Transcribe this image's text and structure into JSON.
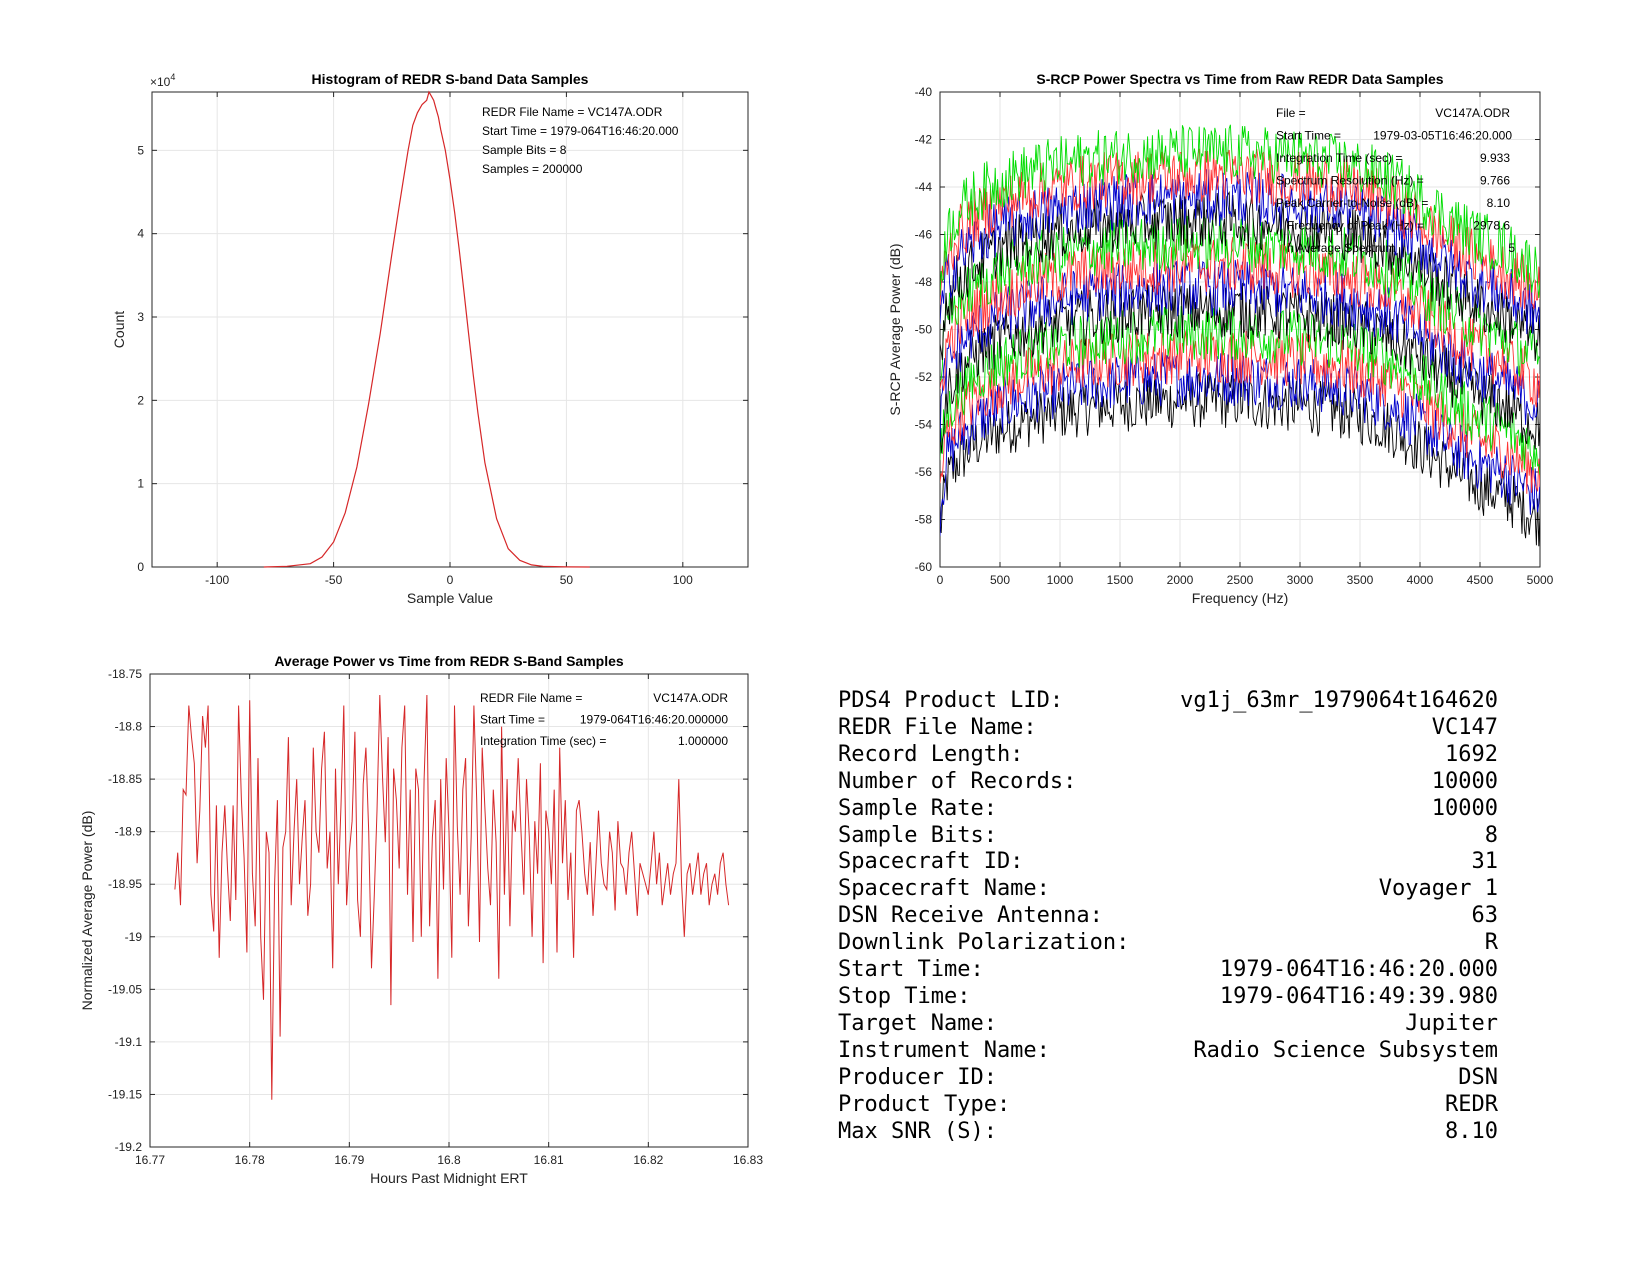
{
  "chart_data": [
    {
      "type": "line",
      "title": "Histogram of REDR S-band Data Samples",
      "xlabel": "Sample Value",
      "ylabel": "Count",
      "xlim": [
        -128,
        128
      ],
      "ylim": [
        0,
        57000
      ],
      "y_exponent_label": "×10",
      "y_exponent_power": "4",
      "xticks": [
        -100,
        -50,
        0,
        50,
        100
      ],
      "yticks": [
        0,
        10000,
        20000,
        30000,
        40000,
        50000
      ],
      "ytick_labels": [
        "0",
        "1",
        "2",
        "3",
        "4",
        "5"
      ],
      "grid": true,
      "color": "#d62728",
      "series": [
        {
          "x": [
            -80,
            -70,
            -60,
            -55,
            -50,
            -45,
            -40,
            -35,
            -30,
            -25,
            -22,
            -20,
            -18,
            -16,
            -14,
            -12,
            -10,
            -9,
            -8,
            -7,
            -6,
            -5,
            -4,
            -2,
            0,
            2,
            4,
            6,
            8,
            10,
            12,
            15,
            20,
            25,
            30,
            35,
            40,
            50,
            60
          ],
          "values": [
            0,
            80,
            400,
            1200,
            3000,
            6500,
            12000,
            19500,
            28000,
            37500,
            43000,
            46500,
            50000,
            53000,
            54500,
            55500,
            56000,
            57000,
            56500,
            56000,
            55000,
            54000,
            52500,
            50000,
            46500,
            42500,
            38000,
            33000,
            28000,
            23000,
            18500,
            12500,
            5800,
            2200,
            800,
            250,
            80,
            10,
            0
          ]
        }
      ],
      "annotations": [
        "REDR File Name = VC147A.ODR",
        "Start Time = 1979-064T16:46:20.000",
        "Sample Bits = 8",
        "Samples = 200000"
      ]
    },
    {
      "type": "line",
      "title": "S-RCP Power Spectra vs Time from Raw REDR Data Samples",
      "xlabel": "Frequency (Hz)",
      "ylabel": "S-RCP Average Power (dB)",
      "xlim": [
        0,
        5000
      ],
      "ylim": [
        -60,
        -40
      ],
      "xticks": [
        0,
        500,
        1000,
        1500,
        2000,
        2500,
        3000,
        3500,
        4000,
        4500,
        5000
      ],
      "yticks": [
        -60,
        -58,
        -56,
        -54,
        -52,
        -50,
        -48,
        -46,
        -44,
        -42,
        -40
      ],
      "grid": true,
      "trace_colors": [
        "#000000",
        "#0000cc",
        "#ff3333",
        "#00dd00"
      ],
      "trace_offsets_db": [
        0,
        1,
        2,
        3,
        4,
        5,
        6,
        7,
        8,
        9,
        10,
        11
      ],
      "base_shape": {
        "x": [
          0,
          50,
          150,
          300,
          500,
          800,
          1200,
          1600,
          2000,
          2500,
          3000,
          3400,
          3700,
          3900,
          4100,
          4300,
          4500,
          4700,
          4850,
          5000
        ],
        "values": [
          -58.5,
          -56.5,
          -55.5,
          -54.8,
          -54.2,
          -53.7,
          -53.3,
          -53.1,
          -53.0,
          -53.0,
          -53.2,
          -53.5,
          -54.0,
          -54.6,
          -55.3,
          -56.0,
          -56.6,
          -57.0,
          -57.5,
          -58.0
        ]
      },
      "noise_db": 1.2,
      "annotations": [
        {
          "label": "File =",
          "value": "VC147A.ODR"
        },
        {
          "label": "Start Time =",
          "value": "1979-03-05T16:46:20.000"
        },
        {
          "label": "Integration Time (sec) =",
          "value": "9.933"
        },
        {
          "label": "Spectrum Resolution (Hz) =",
          "value": "9.766"
        },
        {
          "label": "Peak Carrier-to-Noise (dB) =",
          "value": "8.10"
        },
        {
          "label": "Frequency of Peak (Hz) =",
          "value": "2978.6"
        },
        {
          "label": "n Average Spectrum",
          "value": "5"
        }
      ]
    },
    {
      "type": "line",
      "title": "Average Power vs Time from REDR S-Band Samples",
      "xlabel": "Hours Past Midnight ERT",
      "ylabel": "Normalized Average Power (dB)",
      "xlim": [
        16.77,
        16.83
      ],
      "ylim": [
        -19.2,
        -18.75
      ],
      "xticks": [
        16.77,
        16.78,
        16.79,
        16.8,
        16.81,
        16.82,
        16.83
      ],
      "xtick_labels": [
        "16.77",
        "16.78",
        "16.79",
        "16.8",
        "16.81",
        "16.82",
        "16.83"
      ],
      "yticks": [
        -19.2,
        -19.15,
        -19.1,
        -19.05,
        -19.0,
        -18.95,
        -18.9,
        -18.85,
        -18.8,
        -18.75
      ],
      "ytick_labels": [
        "-19.2",
        "-19.15",
        "-19.1",
        "-19.05",
        "-19",
        "-18.95",
        "-18.9",
        "-18.85",
        "-18.8",
        "-18.75"
      ],
      "grid": true,
      "color": "#d62728",
      "series": [
        {
          "x_start": 16.7725,
          "x_step": 0.00027778,
          "values": [
            -18.955,
            -18.92,
            -18.97,
            -18.86,
            -18.865,
            -18.78,
            -18.81,
            -18.835,
            -18.93,
            -18.88,
            -18.79,
            -18.82,
            -18.78,
            -18.96,
            -18.995,
            -18.875,
            -19.02,
            -18.92,
            -18.875,
            -18.935,
            -18.985,
            -18.875,
            -18.965,
            -18.78,
            -18.87,
            -18.925,
            -19.015,
            -18.775,
            -18.94,
            -18.99,
            -18.83,
            -19.0,
            -19.06,
            -18.9,
            -18.92,
            -19.155,
            -18.95,
            -18.87,
            -19.095,
            -18.915,
            -18.9,
            -18.81,
            -18.97,
            -18.9,
            -18.85,
            -18.95,
            -18.905,
            -18.87,
            -18.98,
            -18.95,
            -18.82,
            -18.9,
            -18.92,
            -18.84,
            -18.805,
            -18.935,
            -18.9,
            -19.03,
            -18.84,
            -18.95,
            -18.875,
            -18.78,
            -18.97,
            -18.92,
            -18.89,
            -18.805,
            -18.965,
            -19.0,
            -18.855,
            -18.82,
            -18.9,
            -19.03,
            -18.96,
            -18.88,
            -18.77,
            -18.85,
            -18.91,
            -18.81,
            -19.065,
            -18.84,
            -18.87,
            -18.935,
            -18.82,
            -18.78,
            -18.96,
            -18.86,
            -19.005,
            -18.84,
            -18.86,
            -19.0,
            -18.85,
            -18.77,
            -18.99,
            -18.905,
            -18.87,
            -19.04,
            -18.85,
            -18.955,
            -18.83,
            -18.9,
            -19.02,
            -18.78,
            -18.895,
            -18.96,
            -18.86,
            -18.83,
            -18.99,
            -18.905,
            -18.78,
            -18.87,
            -19.005,
            -18.82,
            -18.88,
            -18.935,
            -18.97,
            -18.86,
            -18.91,
            -19.04,
            -18.8,
            -18.96,
            -18.85,
            -18.99,
            -18.88,
            -18.9,
            -18.83,
            -18.9,
            -18.96,
            -18.85,
            -18.905,
            -19.0,
            -18.89,
            -18.94,
            -18.835,
            -19.025,
            -18.88,
            -18.9,
            -18.95,
            -18.86,
            -19.015,
            -18.82,
            -18.93,
            -18.87,
            -18.965,
            -18.92,
            -19.02,
            -18.88,
            -18.87,
            -18.9,
            -18.94,
            -18.96,
            -18.91,
            -18.98,
            -18.935,
            -18.88,
            -18.93,
            -18.95,
            -18.955,
            -18.9,
            -18.92,
            -18.975,
            -18.89,
            -18.93,
            -18.935,
            -18.96,
            -18.92,
            -18.9,
            -18.94,
            -18.98,
            -18.93,
            -18.94,
            -18.95,
            -18.96,
            -18.93,
            -18.9,
            -18.95,
            -18.92,
            -18.97,
            -18.95,
            -18.93,
            -18.96,
            -18.94,
            -18.93,
            -18.85,
            -18.95,
            -19.0,
            -18.94,
            -18.93,
            -18.96,
            -18.94,
            -18.92,
            -18.96,
            -18.94,
            -18.93,
            -18.97,
            -18.95,
            -18.94,
            -18.96,
            -18.93,
            -18.92,
            -18.95,
            -18.97
          ]
        }
      ],
      "annotations": [
        {
          "label": "REDR File Name =",
          "value": "VC147A.ODR"
        },
        {
          "label": "Start Time =",
          "value": "1979-064T16:46:20.000000"
        },
        {
          "label": "Integration Time (sec) =",
          "value": "1.000000"
        }
      ]
    }
  ],
  "metadata": [
    {
      "label": "PDS4 Product LID:",
      "value": "vg1j_63mr_1979064t164620"
    },
    {
      "label": "REDR File Name:",
      "value": "VC147"
    },
    {
      "label": "Record Length:",
      "value": "1692"
    },
    {
      "label": "Number of Records:",
      "value": "10000"
    },
    {
      "label": "Sample Rate:",
      "value": "10000"
    },
    {
      "label": "Sample Bits:",
      "value": "8"
    },
    {
      "label": "Spacecraft ID:",
      "value": "31"
    },
    {
      "label": "Spacecraft Name:",
      "value": "Voyager 1"
    },
    {
      "label": "DSN Receive Antenna:",
      "value": "63"
    },
    {
      "label": "Downlink Polarization:",
      "value": "R"
    },
    {
      "label": "Start Time:",
      "value": "1979-064T16:46:20.000"
    },
    {
      "label": "Stop Time:",
      "value": "1979-064T16:49:39.980"
    },
    {
      "label": "Target Name:",
      "value": "Jupiter"
    },
    {
      "label": "Instrument Name:",
      "value": "Radio Science Subsystem"
    },
    {
      "label": "Producer ID:",
      "value": "DSN"
    },
    {
      "label": "Product Type:",
      "value": "REDR"
    },
    {
      "label": "Max SNR (S):",
      "value": "8.10"
    }
  ]
}
